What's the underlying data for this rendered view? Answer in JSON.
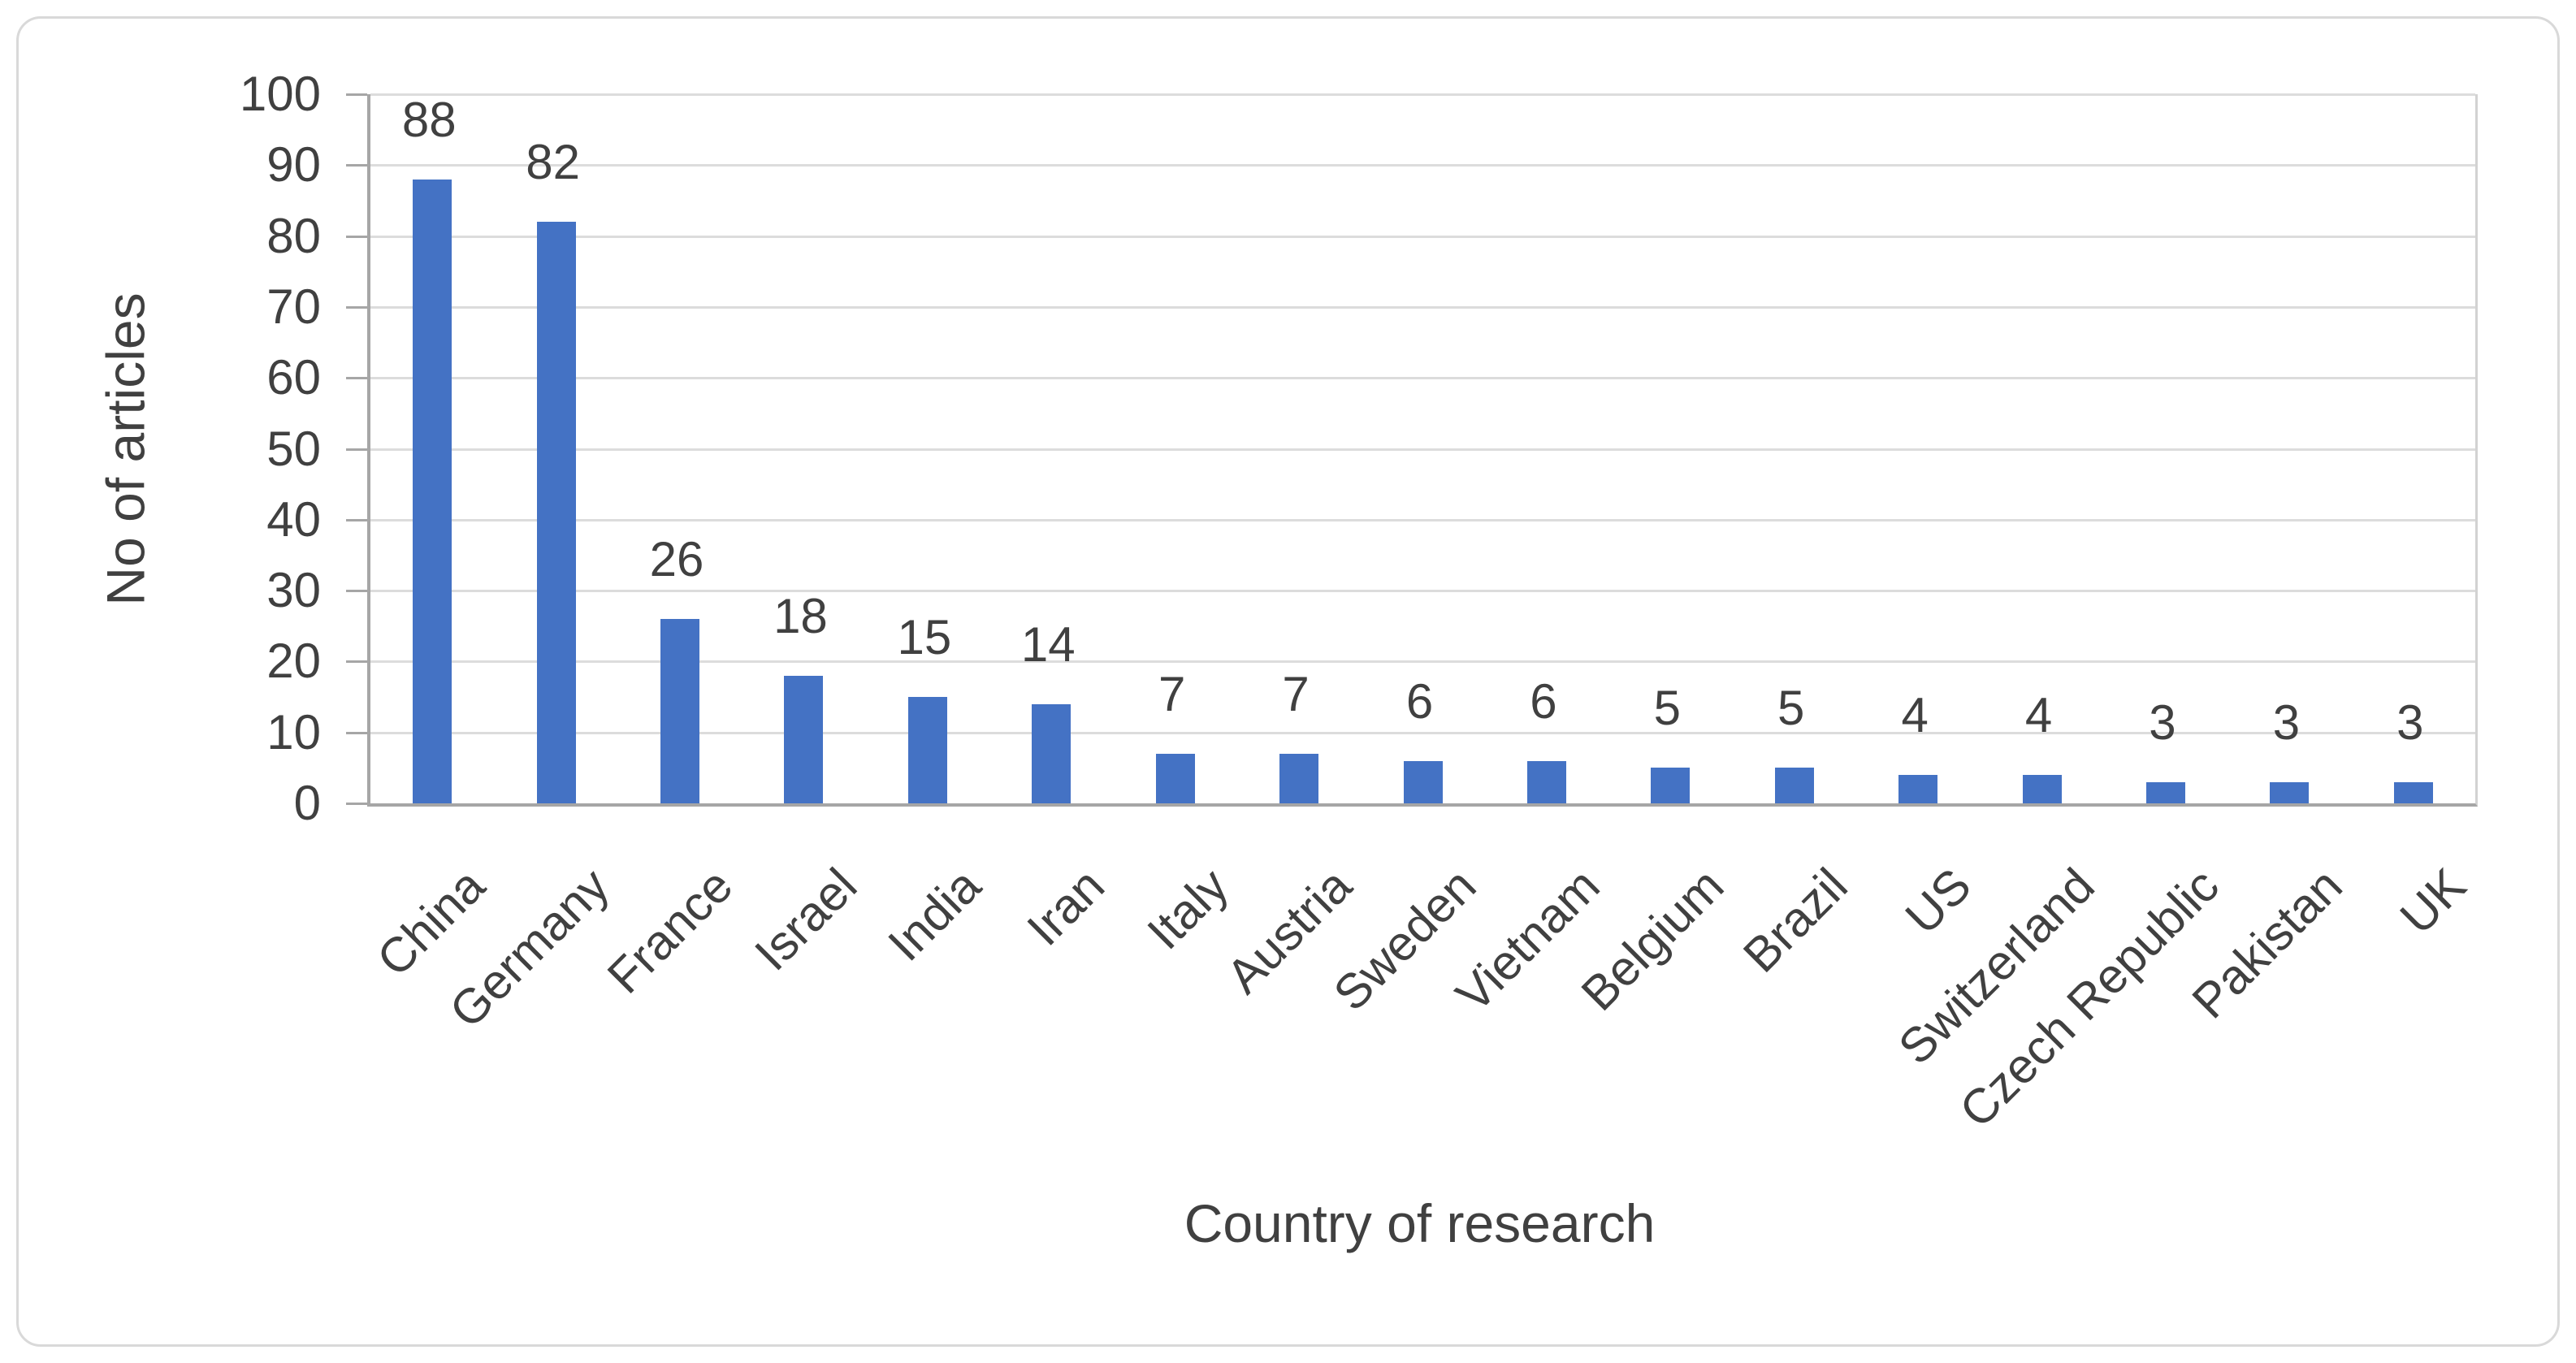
{
  "chart_data": {
    "type": "bar",
    "title": "",
    "categories": [
      "China",
      "Germany",
      "France",
      "Israel",
      "India",
      "Iran",
      "Italy",
      "Austria",
      "Sweden",
      "Vietnam",
      "Belgium",
      "Brazil",
      "US",
      "Switzerland",
      "Czech Republic",
      "Pakistan",
      "UK"
    ],
    "values": [
      88,
      82,
      26,
      18,
      15,
      14,
      7,
      7,
      6,
      6,
      5,
      5,
      4,
      4,
      3,
      3,
      3
    ],
    "data_labels_shown": true,
    "xlabel": "Country of research",
    "ylabel": "No of articles",
    "ylim": [
      0,
      100
    ],
    "yticks": [
      0,
      10,
      20,
      30,
      40,
      50,
      60,
      70,
      80,
      90,
      100
    ],
    "grid": "horizontal",
    "legend_position": "none",
    "bar_color": "#4472C4",
    "gridline_color": "#DCDCDC",
    "axis_line_color": "#A6A6A6",
    "text_color": "#404040",
    "frame_border_color": "#D9D9D9"
  }
}
